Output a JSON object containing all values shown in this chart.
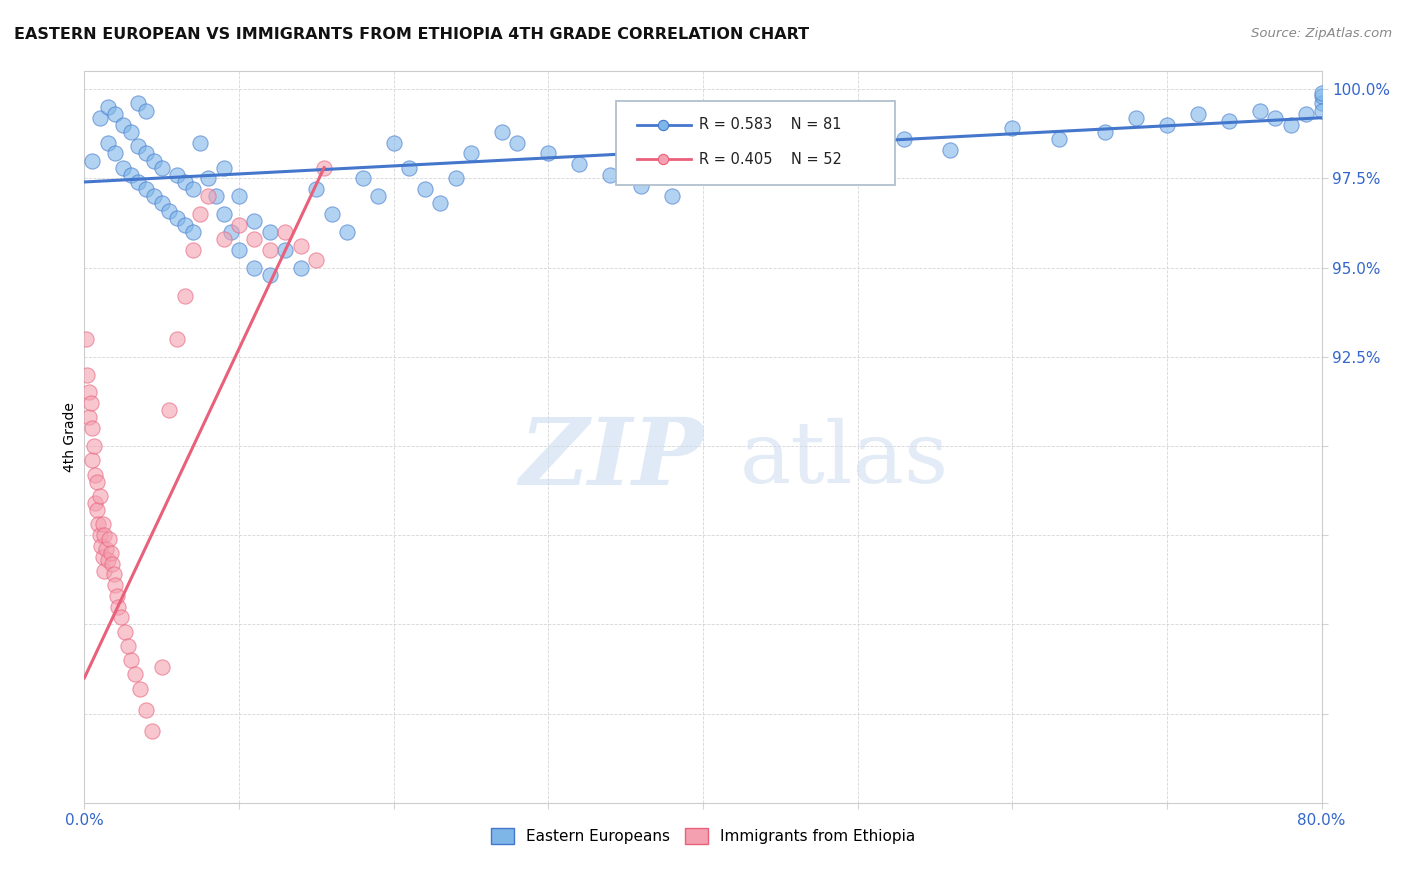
{
  "title": "EASTERN EUROPEAN VS IMMIGRANTS FROM ETHIOPIA 4TH GRADE CORRELATION CHART",
  "source": "Source: ZipAtlas.com",
  "ylabel": "4th Grade",
  "xlim": [
    0.0,
    0.8
  ],
  "ylim": [
    0.8,
    1.005
  ],
  "xticks": [
    0.0,
    0.1,
    0.2,
    0.3,
    0.4,
    0.5,
    0.6,
    0.7,
    0.8
  ],
  "xticklabels": [
    "0.0%",
    "",
    "",
    "",
    "",
    "",
    "",
    "",
    "80.0%"
  ],
  "yticks": [
    0.8,
    0.825,
    0.85,
    0.875,
    0.9,
    0.925,
    0.95,
    0.975,
    1.0
  ],
  "yticklabels": [
    "",
    "",
    "",
    "",
    "",
    "92.5%",
    "95.0%",
    "97.5%",
    "100.0%"
  ],
  "blue_color": "#7EB6E8",
  "pink_color": "#F4A0B0",
  "blue_line_color": "#4477CC",
  "pink_line_color": "#E8607A",
  "legend_blue_r": "R = 0.583",
  "legend_blue_n": "N = 81",
  "legend_pink_r": "R = 0.405",
  "legend_pink_n": "N = 52",
  "blue_trend_x0": 0.0,
  "blue_trend_y0": 0.974,
  "blue_trend_x1": 0.8,
  "blue_trend_y1": 0.992,
  "pink_trend_x0": 0.0,
  "pink_trend_y0": 0.835,
  "pink_trend_x1": 0.155,
  "pink_trend_y1": 0.978,
  "blue_x": [
    0.005,
    0.01,
    0.015,
    0.015,
    0.02,
    0.02,
    0.025,
    0.025,
    0.03,
    0.03,
    0.035,
    0.035,
    0.035,
    0.04,
    0.04,
    0.04,
    0.045,
    0.045,
    0.05,
    0.05,
    0.055,
    0.06,
    0.06,
    0.065,
    0.065,
    0.07,
    0.07,
    0.075,
    0.08,
    0.085,
    0.09,
    0.09,
    0.095,
    0.1,
    0.1,
    0.11,
    0.11,
    0.12,
    0.12,
    0.13,
    0.14,
    0.15,
    0.16,
    0.17,
    0.18,
    0.19,
    0.2,
    0.21,
    0.22,
    0.23,
    0.24,
    0.25,
    0.27,
    0.28,
    0.3,
    0.32,
    0.34,
    0.36,
    0.38,
    0.4,
    0.42,
    0.45,
    0.48,
    0.5,
    0.53,
    0.56,
    0.6,
    0.63,
    0.66,
    0.68,
    0.7,
    0.72,
    0.74,
    0.76,
    0.77,
    0.78,
    0.79,
    0.8,
    0.8,
    0.8,
    0.8
  ],
  "blue_y": [
    0.98,
    0.992,
    0.985,
    0.995,
    0.982,
    0.993,
    0.978,
    0.99,
    0.976,
    0.988,
    0.974,
    0.984,
    0.996,
    0.972,
    0.982,
    0.994,
    0.97,
    0.98,
    0.968,
    0.978,
    0.966,
    0.964,
    0.976,
    0.962,
    0.974,
    0.96,
    0.972,
    0.985,
    0.975,
    0.97,
    0.965,
    0.978,
    0.96,
    0.955,
    0.97,
    0.95,
    0.963,
    0.948,
    0.96,
    0.955,
    0.95,
    0.972,
    0.965,
    0.96,
    0.975,
    0.97,
    0.985,
    0.978,
    0.972,
    0.968,
    0.975,
    0.982,
    0.988,
    0.985,
    0.982,
    0.979,
    0.976,
    0.973,
    0.97,
    0.98,
    0.977,
    0.985,
    0.982,
    0.979,
    0.986,
    0.983,
    0.989,
    0.986,
    0.988,
    0.992,
    0.99,
    0.993,
    0.991,
    0.994,
    0.992,
    0.99,
    0.993,
    0.996,
    0.998,
    0.994,
    0.999
  ],
  "pink_x": [
    0.001,
    0.002,
    0.003,
    0.003,
    0.004,
    0.005,
    0.005,
    0.006,
    0.007,
    0.007,
    0.008,
    0.008,
    0.009,
    0.01,
    0.01,
    0.011,
    0.012,
    0.012,
    0.013,
    0.013,
    0.014,
    0.015,
    0.016,
    0.017,
    0.018,
    0.019,
    0.02,
    0.021,
    0.022,
    0.024,
    0.026,
    0.028,
    0.03,
    0.033,
    0.036,
    0.04,
    0.044,
    0.05,
    0.055,
    0.06,
    0.065,
    0.07,
    0.075,
    0.08,
    0.09,
    0.1,
    0.11,
    0.12,
    0.13,
    0.14,
    0.15,
    0.155
  ],
  "pink_y": [
    0.93,
    0.92,
    0.915,
    0.908,
    0.912,
    0.905,
    0.896,
    0.9,
    0.892,
    0.884,
    0.89,
    0.882,
    0.878,
    0.886,
    0.875,
    0.872,
    0.878,
    0.869,
    0.875,
    0.865,
    0.871,
    0.868,
    0.874,
    0.87,
    0.867,
    0.864,
    0.861,
    0.858,
    0.855,
    0.852,
    0.848,
    0.844,
    0.84,
    0.836,
    0.832,
    0.826,
    0.82,
    0.838,
    0.91,
    0.93,
    0.942,
    0.955,
    0.965,
    0.97,
    0.958,
    0.962,
    0.958,
    0.955,
    0.96,
    0.956,
    0.952,
    0.978
  ]
}
